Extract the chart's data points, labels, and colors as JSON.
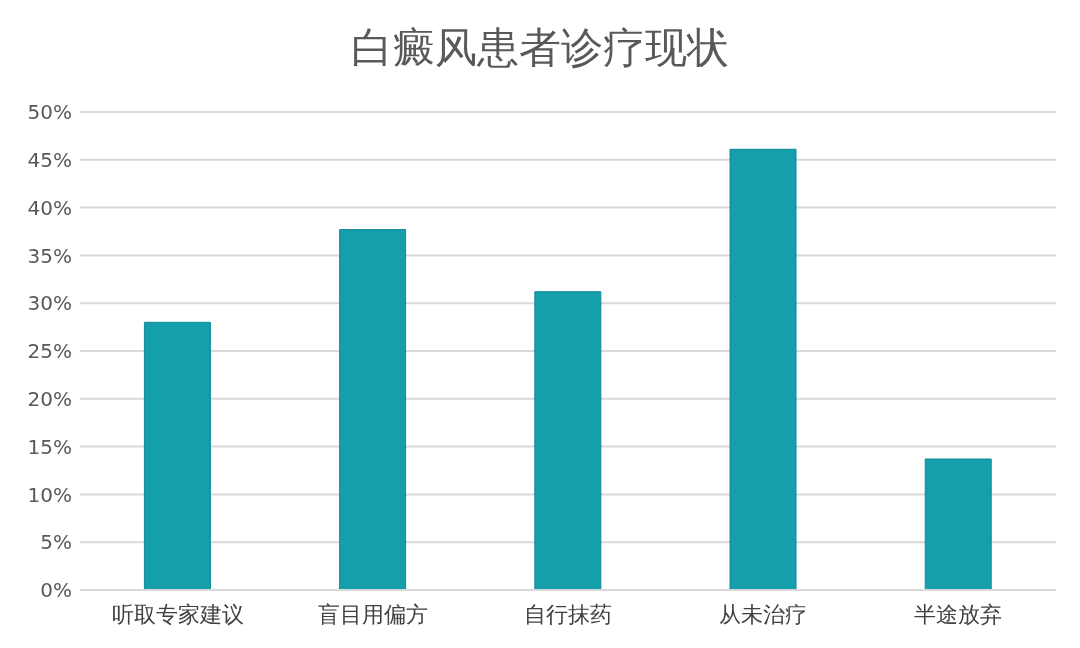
{
  "chart_data": {
    "type": "bar",
    "title": "白癜风患者诊疗现状",
    "categories": [
      "听取专家建议",
      "盲目用偏方",
      "自行抹药",
      "从未治疗",
      "半途放弃"
    ],
    "values": [
      28,
      37.7,
      31.2,
      46.1,
      13.7
    ],
    "color": "#159eab",
    "ylim": [
      0,
      50
    ],
    "yticks": [
      {
        "value": 0,
        "label": "0%"
      },
      {
        "value": 5,
        "label": "5%"
      },
      {
        "value": 10,
        "label": "10%"
      },
      {
        "value": 15,
        "label": "15%"
      },
      {
        "value": 20,
        "label": "20%"
      },
      {
        "value": 25,
        "label": "25%"
      },
      {
        "value": 30,
        "label": "30%"
      },
      {
        "value": 35,
        "label": "35%"
      },
      {
        "value": 40,
        "label": "40%"
      },
      {
        "value": 45,
        "label": "45%"
      },
      {
        "value": 50,
        "label": "50%"
      }
    ],
    "grid": "y"
  }
}
